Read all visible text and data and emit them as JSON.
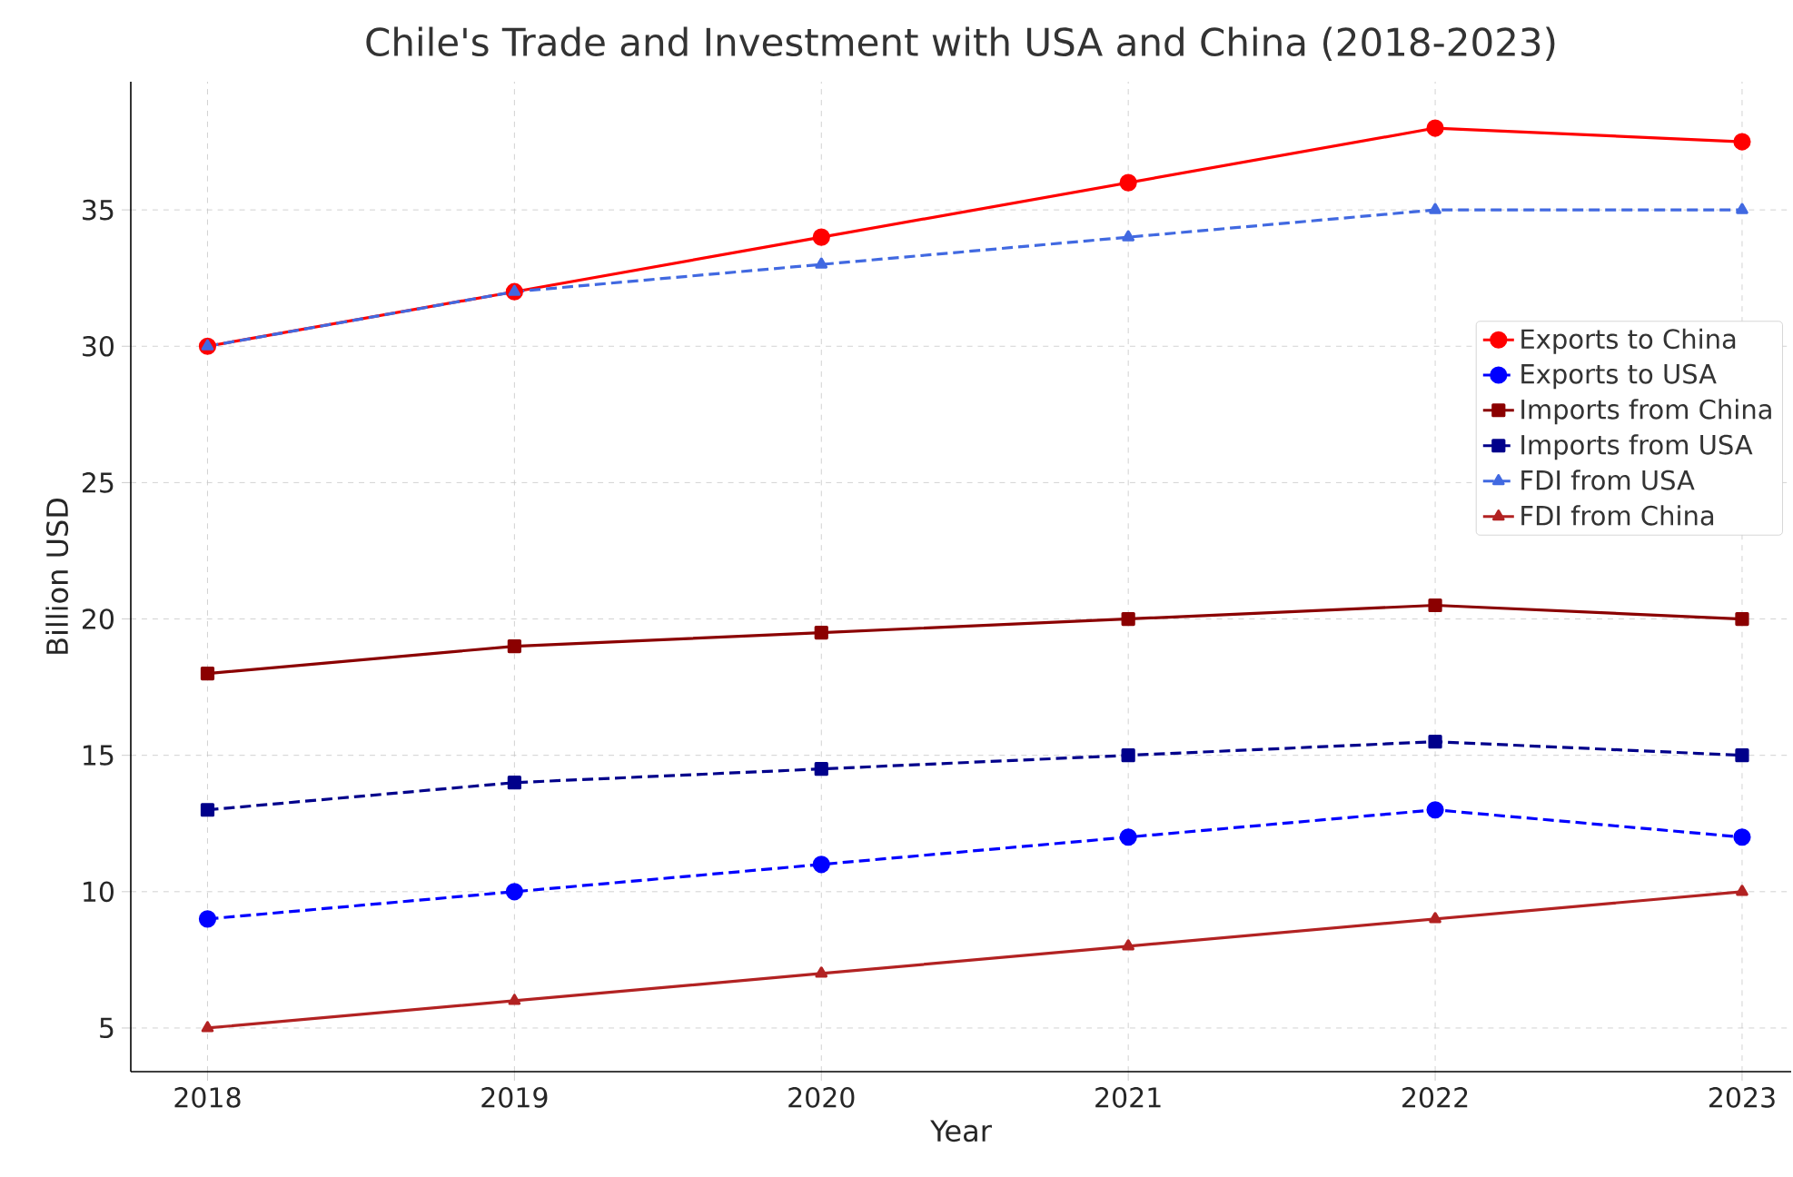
{
  "chart_data": {
    "type": "line",
    "title": "Chile's Trade and Investment with USA and China (2018-2023)",
    "xlabel": "Year",
    "ylabel": "Billion USD",
    "x": [
      2018,
      2019,
      2020,
      2021,
      2022,
      2023
    ],
    "series": [
      {
        "name": "Exports to China",
        "color": "#ff0000",
        "marker": "circle",
        "line_style": "solid",
        "values": [
          30,
          32,
          34,
          36,
          38,
          37.5
        ]
      },
      {
        "name": "Exports to USA",
        "color": "#0000ff",
        "marker": "circle",
        "line_style": "dashed",
        "values": [
          9,
          10,
          11,
          12,
          13,
          12
        ]
      },
      {
        "name": "Imports from China",
        "color": "#8b0000",
        "marker": "square",
        "line_style": "solid",
        "values": [
          18,
          19,
          19.5,
          20,
          20.5,
          20
        ]
      },
      {
        "name": "Imports from USA",
        "color": "#00008b",
        "marker": "square",
        "line_style": "dashed",
        "values": [
          13,
          14,
          14.5,
          15,
          15.5,
          15
        ]
      },
      {
        "name": "FDI from USA",
        "color": "#4169e1",
        "marker": "triangle",
        "line_style": "dashed",
        "values": [
          30,
          32,
          33,
          34,
          35,
          35
        ]
      },
      {
        "name": "FDI from China",
        "color": "#b22222",
        "marker": "triangle",
        "line_style": "solid",
        "values": [
          5,
          6,
          7,
          8,
          9,
          10
        ]
      }
    ],
    "xlim": [
      2017.75,
      2023.16
    ],
    "ylim": [
      3.4,
      39.7
    ],
    "xticks": [
      2018,
      2019,
      2020,
      2021,
      2022,
      2023
    ],
    "yticks": [
      5,
      10,
      15,
      20,
      25,
      30,
      35
    ],
    "grid": true,
    "legend": "center right"
  }
}
